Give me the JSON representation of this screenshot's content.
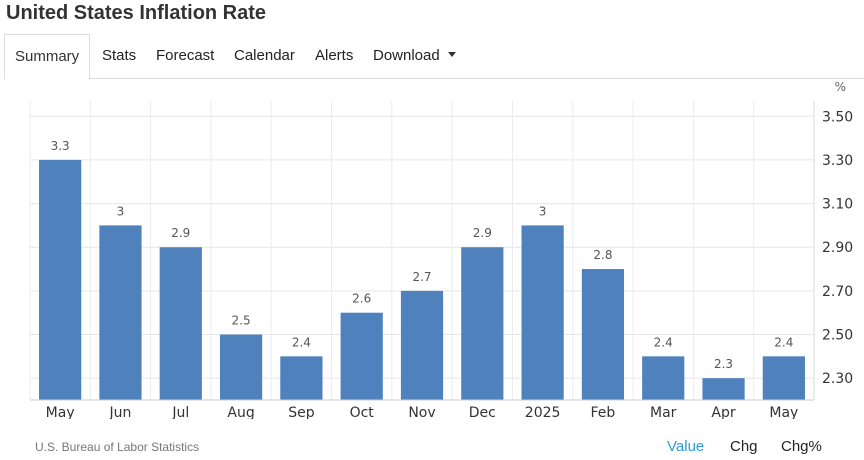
{
  "page_title": "United States Inflation Rate",
  "tabs": [
    {
      "label": "Summary",
      "active": true
    },
    {
      "label": "Stats"
    },
    {
      "label": "Forecast"
    },
    {
      "label": "Calendar"
    },
    {
      "label": "Alerts"
    },
    {
      "label": "Download",
      "dropdown": true
    }
  ],
  "source": "U.S. Bureau of Labor Statistics",
  "view_toggle": {
    "value": "Value",
    "chg": "Chg",
    "chg_pct": "Chg%",
    "selected": "Value"
  },
  "colors": {
    "bar": "#4f81bd",
    "accent": "#2a9fd6"
  },
  "chart_data": {
    "type": "bar",
    "title": "",
    "xlabel": "",
    "ylabel": "",
    "unit": "%",
    "categories": [
      "May",
      "Jun",
      "Jul",
      "Aug",
      "Sep",
      "Oct",
      "Nov",
      "Dec",
      "2025",
      "Feb",
      "Mar",
      "Apr",
      "May"
    ],
    "values": [
      3.3,
      3,
      2.9,
      2.5,
      2.4,
      2.6,
      2.7,
      2.9,
      3,
      2.8,
      2.4,
      2.3,
      2.4
    ],
    "value_labels": [
      "3.3",
      "3",
      "2.9",
      "2.5",
      "2.4",
      "2.6",
      "2.7",
      "2.9",
      "3",
      "2.8",
      "2.4",
      "2.3",
      "2.4"
    ],
    "yticks": [
      2.3,
      2.5,
      2.7,
      2.9,
      3.1,
      3.3,
      3.5
    ],
    "ytick_labels": [
      "2.30",
      "2.50",
      "2.70",
      "2.90",
      "3.10",
      "3.30",
      "3.50"
    ],
    "ylim": [
      2.2,
      3.57
    ],
    "grid": true,
    "y_axis_side": "right",
    "legend": "none"
  }
}
